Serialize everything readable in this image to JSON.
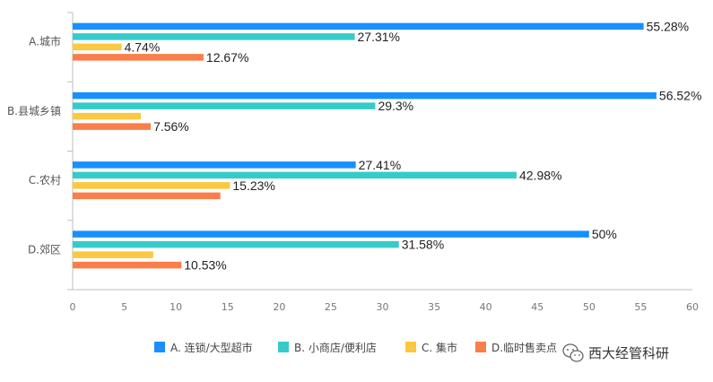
{
  "chart_data": {
    "type": "bar",
    "orientation": "horizontal",
    "categories": [
      "A.城市",
      "B.县城乡镇",
      "C.农村",
      "D.郊区"
    ],
    "series": [
      {
        "name": "A. 连锁/大型超市",
        "color": "#1890ff",
        "values": [
          55.28,
          56.52,
          27.41,
          50
        ],
        "labels": [
          "55.28%",
          "56.52%",
          "27.41%",
          "50%"
        ]
      },
      {
        "name": "B. 小商店/便利店",
        "color": "#36cbcb",
        "values": [
          27.31,
          29.3,
          42.98,
          31.58
        ],
        "labels": [
          "27.31%",
          "29.3%",
          "42.98%",
          "31.58%"
        ]
      },
      {
        "name": "C. 集市",
        "color": "#fbc83f",
        "values": [
          4.74,
          6.6,
          15.23,
          7.8
        ],
        "labels": [
          "4.74%",
          "",
          "15.23%",
          ""
        ]
      },
      {
        "name": "D.临时售卖点",
        "color": "#fa7d4a",
        "values": [
          12.67,
          7.56,
          14.3,
          10.53
        ],
        "labels": [
          "12.67%",
          "7.56%",
          "",
          "10.53%"
        ]
      }
    ],
    "xlim": [
      0,
      60
    ],
    "xticks": [
      0,
      5,
      10,
      15,
      20,
      25,
      30,
      35,
      40,
      45,
      50,
      55,
      60
    ],
    "legend_position": "bottom",
    "grid": false
  },
  "watermark": {
    "text": "西大经管科研",
    "icon": "wechat-icon"
  }
}
